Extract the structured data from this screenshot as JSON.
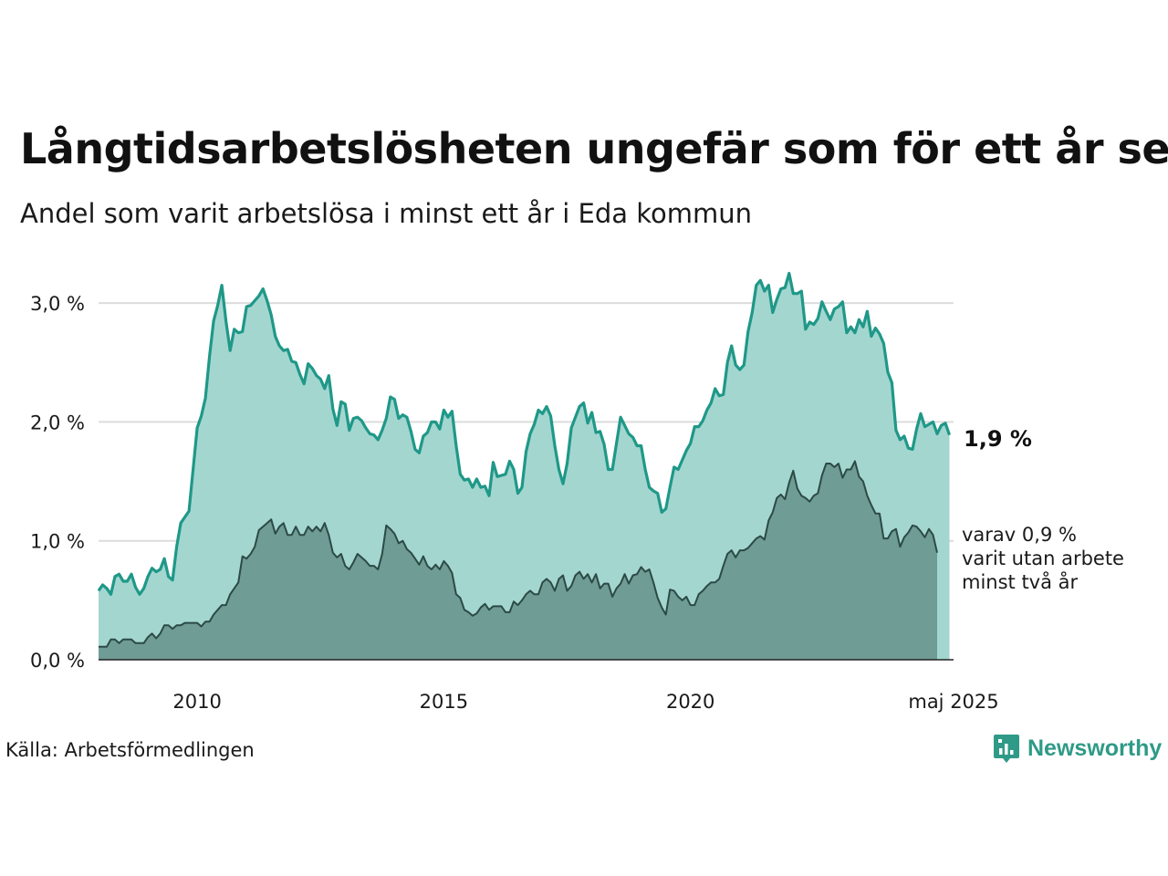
{
  "header": {
    "title": "Långtidsarbetslösheten ungefär som för ett år sen",
    "subtitle": "Andel som varit arbetslösa i minst ett år i Eda kommun"
  },
  "footer": {
    "source": "Källa: Arbetsförmedlingen",
    "brand": "Newsworthy",
    "brand_icon": "newsworthy-logo-icon"
  },
  "colors": {
    "long_line": "#1f9888",
    "long_fill": "#a4d6d0",
    "two_line": "#2c4a45",
    "two_fill": "#6f9c95",
    "brand": "#2f9a87"
  },
  "chart_data": {
    "type": "area",
    "x_start": "2008-01",
    "x_end": "2025-05",
    "frequency": "monthly",
    "x_ticks": [
      {
        "x": "2010-01",
        "label": "2010"
      },
      {
        "x": "2015-01",
        "label": "2015"
      },
      {
        "x": "2020-01",
        "label": "2020"
      },
      {
        "x": "2025-05",
        "label": "maj 2025"
      }
    ],
    "y_ticks": [
      {
        "value": 0,
        "label": "0,0 %"
      },
      {
        "value": 1,
        "label": "1,0 %"
      },
      {
        "value": 2,
        "label": "2,0 %"
      },
      {
        "value": 3,
        "label": "3,0 %"
      }
    ],
    "ylim": [
      0,
      3.3
    ],
    "grid": true,
    "series": [
      {
        "name": "",
        "end_label": "1,9 %",
        "values": [
          0.58,
          0.63,
          0.6,
          0.55,
          0.7,
          0.72,
          0.66,
          0.66,
          0.72,
          0.61,
          0.55,
          0.6,
          0.7,
          0.77,
          0.74,
          0.76,
          0.85,
          0.7,
          0.67,
          0.95,
          1.15,
          1.2,
          1.25,
          1.6,
          1.95,
          2.05,
          2.2,
          2.55,
          2.85,
          2.98,
          3.15,
          2.85,
          2.6,
          2.78,
          2.75,
          2.76,
          2.97,
          2.98,
          3.02,
          3.06,
          3.12,
          3.02,
          2.9,
          2.72,
          2.64,
          2.6,
          2.61,
          2.51,
          2.5,
          2.4,
          2.32,
          2.49,
          2.45,
          2.39,
          2.36,
          2.28,
          2.39,
          2.11,
          1.97,
          2.17,
          2.15,
          1.93,
          2.03,
          2.04,
          2.01,
          1.95,
          1.9,
          1.89,
          1.85,
          1.93,
          2.03,
          2.21,
          2.19,
          2.03,
          2.06,
          2.04,
          1.92,
          1.77,
          1.74,
          1.88,
          1.91,
          2.0,
          2.0,
          1.94,
          2.1,
          2.04,
          2.09,
          1.8,
          1.56,
          1.51,
          1.52,
          1.45,
          1.52,
          1.45,
          1.46,
          1.38,
          1.66,
          1.54,
          1.55,
          1.56,
          1.67,
          1.6,
          1.4,
          1.45,
          1.75,
          1.9,
          1.98,
          2.1,
          2.07,
          2.13,
          2.05,
          1.8,
          1.6,
          1.48,
          1.65,
          1.95,
          2.04,
          2.13,
          2.16,
          1.99,
          2.08,
          1.91,
          1.92,
          1.81,
          1.6,
          1.6,
          1.82,
          2.04,
          1.97,
          1.9,
          1.87,
          1.8,
          1.8,
          1.6,
          1.45,
          1.42,
          1.4,
          1.24,
          1.27,
          1.45,
          1.62,
          1.6,
          1.68,
          1.76,
          1.82,
          1.96,
          1.96,
          2.01,
          2.1,
          2.16,
          2.28,
          2.22,
          2.23,
          2.5,
          2.64,
          2.48,
          2.44,
          2.48,
          2.76,
          2.92,
          3.15,
          3.19,
          3.1,
          3.15,
          2.92,
          3.03,
          3.12,
          3.13,
          3.25,
          3.08,
          3.08,
          3.1,
          2.78,
          2.84,
          2.82,
          2.87,
          3.01,
          2.93,
          2.86,
          2.95,
          2.97,
          3.01,
          2.75,
          2.8,
          2.75,
          2.86,
          2.8,
          2.93,
          2.72,
          2.79,
          2.74,
          2.66,
          2.42,
          2.33,
          1.93,
          1.85,
          1.88,
          1.78,
          1.77,
          1.94,
          2.07,
          1.96,
          1.98,
          2.0,
          1.9,
          1.97,
          1.99,
          1.89
        ]
      },
      {
        "name": "",
        "end_label": [
          "varav 0,9 %",
          "varit utan arbete",
          "minst två år"
        ],
        "values": [
          0.11,
          0.11,
          0.11,
          0.17,
          0.17,
          0.14,
          0.17,
          0.17,
          0.17,
          0.14,
          0.14,
          0.14,
          0.19,
          0.22,
          0.18,
          0.22,
          0.29,
          0.29,
          0.26,
          0.29,
          0.29,
          0.31,
          0.31,
          0.31,
          0.31,
          0.28,
          0.32,
          0.32,
          0.38,
          0.42,
          0.46,
          0.46,
          0.55,
          0.6,
          0.65,
          0.87,
          0.85,
          0.89,
          0.95,
          1.09,
          1.12,
          1.15,
          1.18,
          1.06,
          1.12,
          1.15,
          1.05,
          1.05,
          1.12,
          1.05,
          1.05,
          1.12,
          1.08,
          1.12,
          1.08,
          1.15,
          1.05,
          0.9,
          0.86,
          0.89,
          0.79,
          0.76,
          0.82,
          0.89,
          0.86,
          0.83,
          0.79,
          0.79,
          0.76,
          0.89,
          1.13,
          1.1,
          1.06,
          0.98,
          1.0,
          0.93,
          0.9,
          0.85,
          0.8,
          0.87,
          0.79,
          0.76,
          0.8,
          0.76,
          0.83,
          0.79,
          0.73,
          0.55,
          0.52,
          0.42,
          0.4,
          0.37,
          0.39,
          0.44,
          0.47,
          0.42,
          0.45,
          0.45,
          0.45,
          0.4,
          0.4,
          0.49,
          0.46,
          0.5,
          0.55,
          0.58,
          0.55,
          0.55,
          0.65,
          0.68,
          0.65,
          0.58,
          0.68,
          0.71,
          0.58,
          0.62,
          0.71,
          0.74,
          0.68,
          0.72,
          0.65,
          0.72,
          0.6,
          0.64,
          0.64,
          0.53,
          0.6,
          0.64,
          0.72,
          0.64,
          0.71,
          0.72,
          0.78,
          0.74,
          0.76,
          0.65,
          0.52,
          0.44,
          0.38,
          0.59,
          0.58,
          0.53,
          0.5,
          0.53,
          0.46,
          0.46,
          0.55,
          0.58,
          0.62,
          0.65,
          0.65,
          0.68,
          0.79,
          0.89,
          0.92,
          0.86,
          0.92,
          0.92,
          0.94,
          0.98,
          1.02,
          1.04,
          1.01,
          1.17,
          1.24,
          1.36,
          1.39,
          1.35,
          1.49,
          1.59,
          1.44,
          1.38,
          1.36,
          1.33,
          1.38,
          1.4,
          1.55,
          1.65,
          1.65,
          1.62,
          1.65,
          1.53,
          1.6,
          1.6,
          1.67,
          1.54,
          1.5,
          1.38,
          1.3,
          1.23,
          1.23,
          1.02,
          1.02,
          1.08,
          1.1,
          0.95,
          1.03,
          1.07,
          1.13,
          1.12,
          1.08,
          1.03,
          1.1,
          1.05,
          0.9
        ]
      }
    ]
  }
}
